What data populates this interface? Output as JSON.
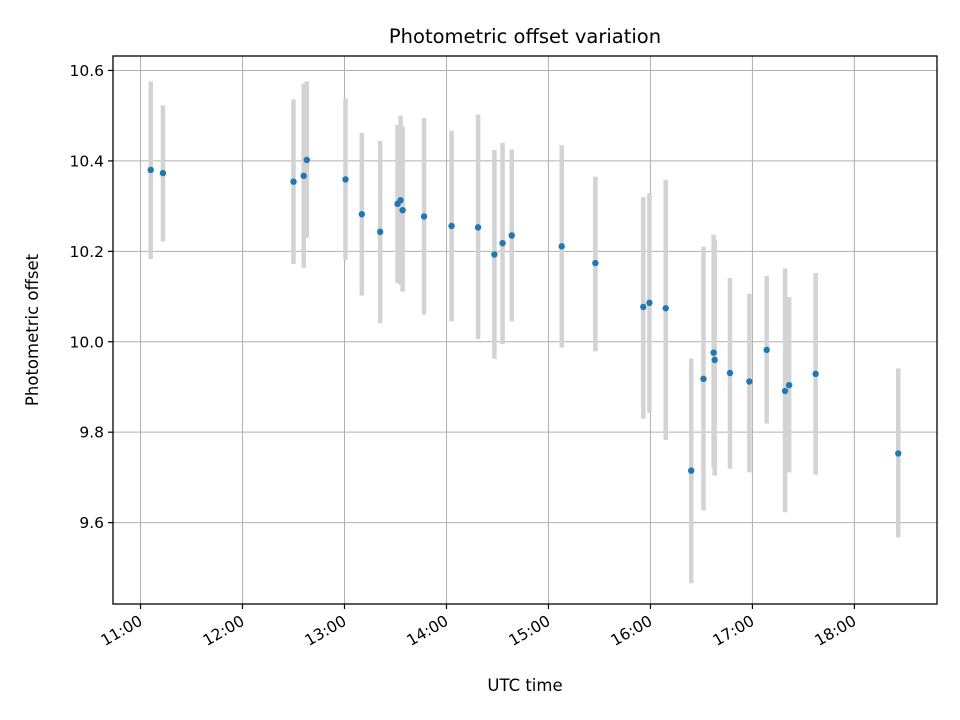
{
  "chart_data": {
    "type": "scatter",
    "title": "Photometric offset variation",
    "xlabel": "UTC time",
    "ylabel": "Photometric offset",
    "xlim_hours": [
      10.73,
      18.81
    ],
    "ylim": [
      9.42,
      10.632
    ],
    "x_ticks": [
      {
        "value": 11,
        "label": "11:00"
      },
      {
        "value": 12,
        "label": "12:00"
      },
      {
        "value": 13,
        "label": "13:00"
      },
      {
        "value": 14,
        "label": "14:00"
      },
      {
        "value": 15,
        "label": "15:00"
      },
      {
        "value": 16,
        "label": "16:00"
      },
      {
        "value": 17,
        "label": "17:00"
      },
      {
        "value": 18,
        "label": "18:00"
      }
    ],
    "y_ticks": [
      {
        "value": 9.6,
        "label": "9.6"
      },
      {
        "value": 9.8,
        "label": "9.8"
      },
      {
        "value": 10.0,
        "label": "10.0"
      },
      {
        "value": 10.2,
        "label": "10.2"
      },
      {
        "value": 10.4,
        "label": "10.4"
      },
      {
        "value": 10.6,
        "label": "10.6"
      }
    ],
    "grid": true,
    "point_color": "#1f77b4",
    "errorbar_color": "#d3d3d3",
    "points": [
      {
        "t": 11.1,
        "y": 10.38,
        "lo": 10.183,
        "hi": 10.576
      },
      {
        "t": 11.22,
        "y": 10.373,
        "lo": 10.222,
        "hi": 10.523
      },
      {
        "t": 12.5,
        "y": 10.354,
        "lo": 10.172,
        "hi": 10.536
      },
      {
        "t": 12.6,
        "y": 10.367,
        "lo": 10.163,
        "hi": 10.571
      },
      {
        "t": 12.63,
        "y": 10.402,
        "lo": 10.23,
        "hi": 10.576
      },
      {
        "t": 13.01,
        "y": 10.359,
        "lo": 10.181,
        "hi": 10.538
      },
      {
        "t": 13.17,
        "y": 10.282,
        "lo": 10.102,
        "hi": 10.462
      },
      {
        "t": 13.35,
        "y": 10.243,
        "lo": 10.041,
        "hi": 10.444
      },
      {
        "t": 13.52,
        "y": 10.305,
        "lo": 10.13,
        "hi": 10.48
      },
      {
        "t": 13.55,
        "y": 10.313,
        "lo": 10.126,
        "hi": 10.5
      },
      {
        "t": 13.57,
        "y": 10.291,
        "lo": 10.111,
        "hi": 10.476
      },
      {
        "t": 13.78,
        "y": 10.277,
        "lo": 10.06,
        "hi": 10.495
      },
      {
        "t": 14.05,
        "y": 10.256,
        "lo": 10.045,
        "hi": 10.467
      },
      {
        "t": 14.31,
        "y": 10.253,
        "lo": 10.006,
        "hi": 10.502
      },
      {
        "t": 14.47,
        "y": 10.193,
        "lo": 9.962,
        "hi": 10.424
      },
      {
        "t": 14.55,
        "y": 10.218,
        "lo": 9.995,
        "hi": 10.44
      },
      {
        "t": 14.64,
        "y": 10.235,
        "lo": 10.045,
        "hi": 10.425
      },
      {
        "t": 15.13,
        "y": 10.211,
        "lo": 9.987,
        "hi": 10.435
      },
      {
        "t": 15.46,
        "y": 10.174,
        "lo": 9.979,
        "hi": 10.365
      },
      {
        "t": 15.93,
        "y": 10.077,
        "lo": 9.83,
        "hi": 10.32
      },
      {
        "t": 15.99,
        "y": 10.086,
        "lo": 9.843,
        "hi": 10.329
      },
      {
        "t": 16.15,
        "y": 10.074,
        "lo": 9.783,
        "hi": 10.358
      },
      {
        "t": 16.4,
        "y": 9.715,
        "lo": 9.466,
        "hi": 9.963
      },
      {
        "t": 16.52,
        "y": 9.918,
        "lo": 9.627,
        "hi": 10.21
      },
      {
        "t": 16.62,
        "y": 9.976,
        "lo": 9.722,
        "hi": 10.237
      },
      {
        "t": 16.63,
        "y": 9.96,
        "lo": 9.704,
        "hi": 10.225
      },
      {
        "t": 16.78,
        "y": 9.931,
        "lo": 9.719,
        "hi": 10.141
      },
      {
        "t": 16.97,
        "y": 9.912,
        "lo": 9.711,
        "hi": 10.106
      },
      {
        "t": 17.14,
        "y": 9.982,
        "lo": 9.819,
        "hi": 10.146
      },
      {
        "t": 17.32,
        "y": 9.891,
        "lo": 9.623,
        "hi": 10.162
      },
      {
        "t": 17.36,
        "y": 9.904,
        "lo": 9.711,
        "hi": 10.099
      },
      {
        "t": 17.62,
        "y": 9.929,
        "lo": 9.706,
        "hi": 10.152
      },
      {
        "t": 18.43,
        "y": 9.753,
        "lo": 9.567,
        "hi": 9.941
      }
    ]
  }
}
